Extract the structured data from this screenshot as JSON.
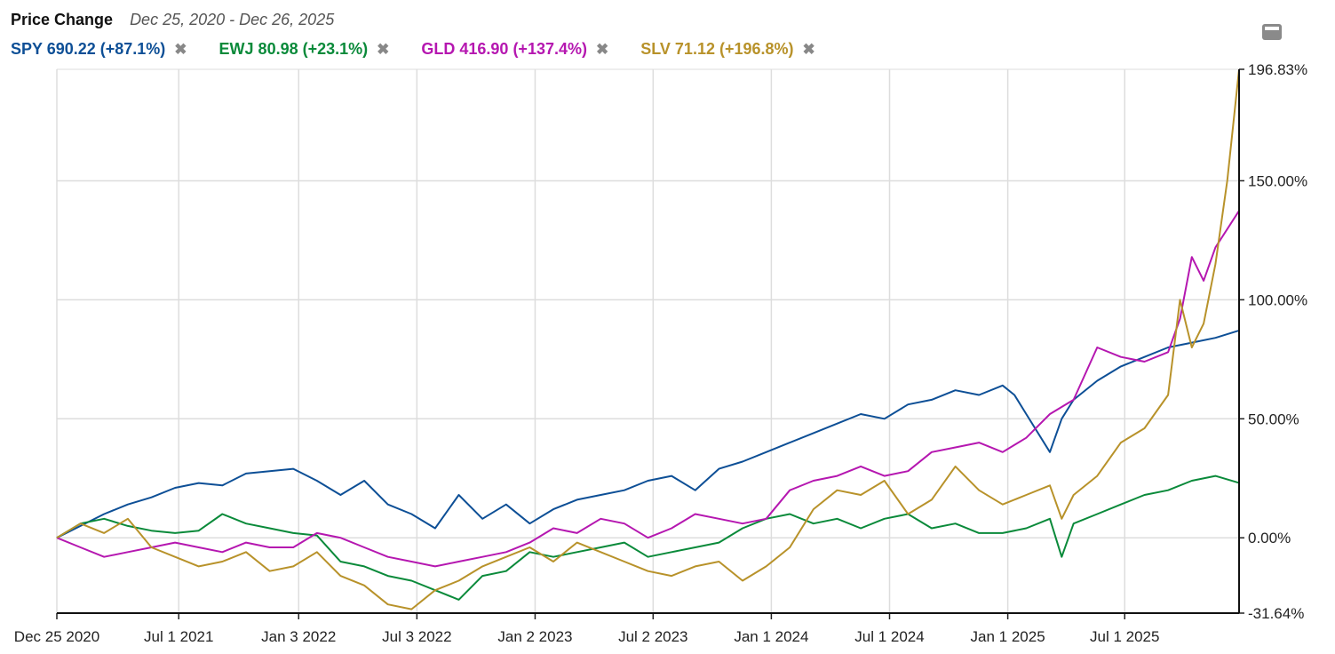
{
  "header": {
    "title": "Price Change",
    "date_range": "Dec 25, 2020 - Dec 26, 2025"
  },
  "legend": [
    {
      "symbol": "SPY",
      "label": "SPY 690.22 (+87.1%)",
      "color": "#0d4f96",
      "close_icon": "close-icon"
    },
    {
      "symbol": "EWJ",
      "label": "EWJ 80.98 (+23.1%)",
      "color": "#0a8a3a",
      "close_icon": "close-icon"
    },
    {
      "symbol": "GLD",
      "label": "GLD 416.90 (+137.4%)",
      "color": "#b517b0",
      "close_icon": "close-icon"
    },
    {
      "symbol": "SLV",
      "label": "SLV 71.12 (+196.8%)",
      "color": "#b8922a",
      "close_icon": "close-icon"
    }
  ],
  "close_glyph": "✖",
  "menu_icon": "chart-menu-icon",
  "chart_data": {
    "type": "line",
    "title": "Price Change",
    "subtitle": "Dec 25, 2020 - Dec 26, 2025",
    "xlabel": "",
    "ylabel": "",
    "x_ticks": [
      "Dec 25 2020",
      "Jul 1 2021",
      "Jan 3 2022",
      "Jul 3 2022",
      "Jan 2 2023",
      "Jul 2 2023",
      "Jan 1 2024",
      "Jul 1 2024",
      "Jan 1 2025",
      "Jul 1 2025"
    ],
    "x_tick_positions": [
      0,
      0.5155,
      1.0227,
      1.5227,
      2.0227,
      2.5218,
      3.0218,
      3.5218,
      4.0218,
      4.5163
    ],
    "x_range": [
      0,
      5.0
    ],
    "y_ticks": [
      -31.64,
      0,
      50,
      100,
      150,
      196.83
    ],
    "y_tick_labels": [
      "-31.64%",
      "0.00%",
      "50.00%",
      "100.00%",
      "150.00%",
      "196.83%"
    ],
    "ylim": [
      -31.64,
      196.83
    ],
    "grid": true,
    "legend_position": "top-left",
    "x_unit": "years since Dec 25 2020",
    "series": [
      {
        "name": "SPY",
        "color": "#0d4f96",
        "x": [
          0,
          0.1,
          0.2,
          0.3,
          0.4,
          0.5,
          0.6,
          0.7,
          0.8,
          0.9,
          1.0,
          1.1,
          1.2,
          1.3,
          1.4,
          1.5,
          1.6,
          1.7,
          1.8,
          1.9,
          2.0,
          2.1,
          2.2,
          2.3,
          2.4,
          2.5,
          2.6,
          2.7,
          2.8,
          2.9,
          3.0,
          3.1,
          3.2,
          3.3,
          3.4,
          3.5,
          3.6,
          3.7,
          3.8,
          3.9,
          4.0,
          4.05,
          4.1,
          4.2,
          4.25,
          4.3,
          4.4,
          4.5,
          4.6,
          4.7,
          4.8,
          4.9,
          5.0
        ],
        "values": [
          0,
          5,
          10,
          14,
          17,
          21,
          23,
          22,
          27,
          28,
          29,
          24,
          18,
          24,
          14,
          10,
          4,
          18,
          8,
          14,
          6,
          12,
          16,
          18,
          20,
          24,
          26,
          20,
          29,
          32,
          36,
          40,
          44,
          48,
          52,
          50,
          56,
          58,
          62,
          60,
          64,
          60,
          52,
          36,
          50,
          58,
          66,
          72,
          76,
          80,
          82,
          84,
          87.1
        ]
      },
      {
        "name": "EWJ",
        "color": "#0a8a3a",
        "x": [
          0,
          0.1,
          0.2,
          0.3,
          0.4,
          0.5,
          0.6,
          0.7,
          0.8,
          0.9,
          1.0,
          1.1,
          1.2,
          1.3,
          1.4,
          1.5,
          1.6,
          1.7,
          1.8,
          1.9,
          2.0,
          2.1,
          2.2,
          2.3,
          2.4,
          2.5,
          2.6,
          2.7,
          2.8,
          2.9,
          3.0,
          3.1,
          3.2,
          3.3,
          3.4,
          3.5,
          3.6,
          3.7,
          3.8,
          3.9,
          4.0,
          4.1,
          4.2,
          4.25,
          4.3,
          4.4,
          4.5,
          4.6,
          4.7,
          4.8,
          4.9,
          5.0
        ],
        "values": [
          0,
          6,
          8,
          5,
          3,
          2,
          3,
          10,
          6,
          4,
          2,
          1,
          -10,
          -12,
          -16,
          -18,
          -22,
          -26,
          -16,
          -14,
          -6,
          -8,
          -6,
          -4,
          -2,
          -8,
          -6,
          -4,
          -2,
          4,
          8,
          10,
          6,
          8,
          4,
          8,
          10,
          4,
          6,
          2,
          2,
          4,
          8,
          -8,
          6,
          10,
          14,
          18,
          20,
          24,
          26,
          23.1
        ]
      },
      {
        "name": "GLD",
        "color": "#b517b0",
        "x": [
          0,
          0.1,
          0.2,
          0.3,
          0.4,
          0.5,
          0.6,
          0.7,
          0.8,
          0.9,
          1.0,
          1.1,
          1.2,
          1.3,
          1.4,
          1.5,
          1.6,
          1.7,
          1.8,
          1.9,
          2.0,
          2.1,
          2.2,
          2.3,
          2.4,
          2.5,
          2.6,
          2.7,
          2.8,
          2.9,
          3.0,
          3.1,
          3.2,
          3.3,
          3.4,
          3.5,
          3.6,
          3.7,
          3.8,
          3.9,
          4.0,
          4.1,
          4.2,
          4.3,
          4.4,
          4.5,
          4.6,
          4.7,
          4.75,
          4.8,
          4.85,
          4.9,
          5.0
        ],
        "values": [
          0,
          -4,
          -8,
          -6,
          -4,
          -2,
          -4,
          -6,
          -2,
          -4,
          -4,
          2,
          0,
          -4,
          -8,
          -10,
          -12,
          -10,
          -8,
          -6,
          -2,
          4,
          2,
          8,
          6,
          0,
          4,
          10,
          8,
          6,
          8,
          20,
          24,
          26,
          30,
          26,
          28,
          36,
          38,
          40,
          36,
          42,
          52,
          58,
          80,
          76,
          74,
          78,
          92,
          118,
          108,
          122,
          137.4
        ]
      },
      {
        "name": "SLV",
        "color": "#b8922a",
        "x": [
          0,
          0.1,
          0.2,
          0.3,
          0.4,
          0.5,
          0.6,
          0.7,
          0.8,
          0.9,
          1.0,
          1.1,
          1.2,
          1.3,
          1.4,
          1.5,
          1.6,
          1.7,
          1.8,
          1.9,
          2.0,
          2.1,
          2.2,
          2.3,
          2.4,
          2.5,
          2.6,
          2.7,
          2.8,
          2.9,
          3.0,
          3.1,
          3.2,
          3.3,
          3.4,
          3.5,
          3.6,
          3.7,
          3.8,
          3.9,
          4.0,
          4.1,
          4.2,
          4.25,
          4.3,
          4.4,
          4.5,
          4.6,
          4.7,
          4.75,
          4.8,
          4.85,
          4.9,
          4.95,
          5.0
        ],
        "values": [
          0,
          6,
          2,
          8,
          -4,
          -8,
          -12,
          -10,
          -6,
          -14,
          -12,
          -6,
          -16,
          -20,
          -28,
          -30,
          -22,
          -18,
          -12,
          -8,
          -4,
          -10,
          -2,
          -6,
          -10,
          -14,
          -16,
          -12,
          -10,
          -18,
          -12,
          -4,
          12,
          20,
          18,
          24,
          10,
          16,
          30,
          20,
          14,
          18,
          22,
          8,
          18,
          26,
          40,
          46,
          60,
          100,
          80,
          90,
          115,
          150,
          196.8
        ]
      }
    ]
  }
}
